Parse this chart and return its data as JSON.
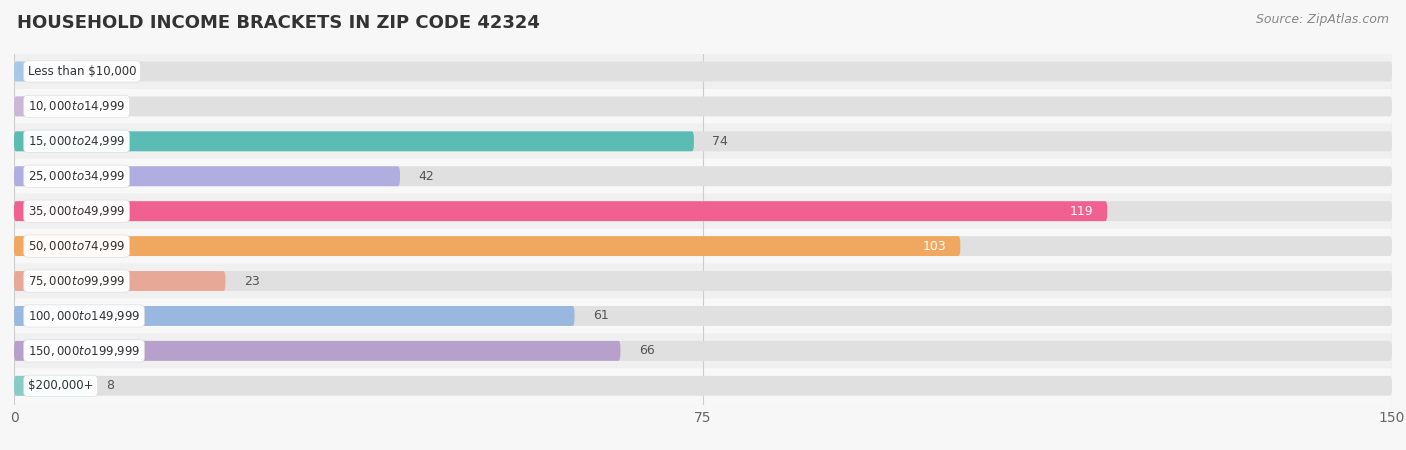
{
  "title": "HOUSEHOLD INCOME BRACKETS IN ZIP CODE 42324",
  "source": "Source: ZipAtlas.com",
  "categories": [
    "Less than $10,000",
    "$10,000 to $14,999",
    "$15,000 to $24,999",
    "$25,000 to $34,999",
    "$35,000 to $49,999",
    "$50,000 to $74,999",
    "$75,000 to $99,999",
    "$100,000 to $149,999",
    "$150,000 to $199,999",
    "$200,000+"
  ],
  "values": [
    7,
    8,
    74,
    42,
    119,
    103,
    23,
    61,
    66,
    8
  ],
  "bar_colors": [
    "#a8c8e8",
    "#cbb8d8",
    "#5bbcb4",
    "#b0aee0",
    "#f06090",
    "#f0a860",
    "#e8a898",
    "#98b8e0",
    "#b8a0cc",
    "#88ccc8"
  ],
  "xlim": [
    0,
    150
  ],
  "xticks": [
    0,
    75,
    150
  ],
  "background_color": "#f7f7f7",
  "row_bg_color": "#efefef",
  "bar_bg_color": "#e0e0e0",
  "label_inside_threshold": 100,
  "label_inside_color": "#ffffff",
  "label_outside_color": "#555555",
  "title_fontsize": 13,
  "source_fontsize": 9
}
